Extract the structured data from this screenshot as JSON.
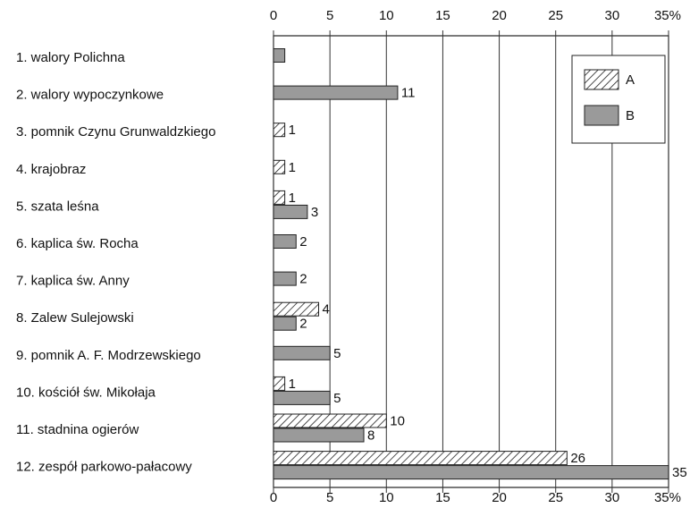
{
  "chart_data": {
    "type": "bar",
    "orientation": "horizontal",
    "categories": [
      "1. walory Polichna",
      "2. walory wypoczynkowe",
      "3. pomnik Czynu Grunwaldzkiego",
      "4. krajobraz",
      "5. szata leśna",
      "6. kaplica św. Rocha",
      "7. kaplica św. Anny",
      "8. Zalew Sulejowski",
      "9. pomnik A. F. Modrzewskiego",
      "10. kościół św. Mikołaja",
      "11. stadnina ogierów",
      "12. zespół parkowo-pałacowy"
    ],
    "series": [
      {
        "name": "A",
        "color": "hatch",
        "values": [
          null,
          null,
          1,
          1,
          1,
          null,
          null,
          4,
          null,
          1,
          10,
          26
        ],
        "value_labels": [
          null,
          null,
          "1",
          "1",
          "1",
          null,
          null,
          "4",
          null,
          "1",
          "10",
          "26"
        ]
      },
      {
        "name": "B",
        "color": "#9a9a9a",
        "values": [
          1,
          11,
          null,
          null,
          3,
          2,
          2,
          2,
          5,
          5,
          8,
          35
        ],
        "value_labels": [
          null,
          "11",
          null,
          null,
          "3",
          "2",
          "2",
          "2",
          "5",
          "5",
          "8",
          "35"
        ]
      }
    ],
    "xlim": [
      0,
      35
    ],
    "xticks": [
      0,
      5,
      10,
      15,
      20,
      25,
      30,
      {
        "value": 35,
        "label": "35%"
      }
    ],
    "grid": true,
    "legend": "upper right"
  }
}
